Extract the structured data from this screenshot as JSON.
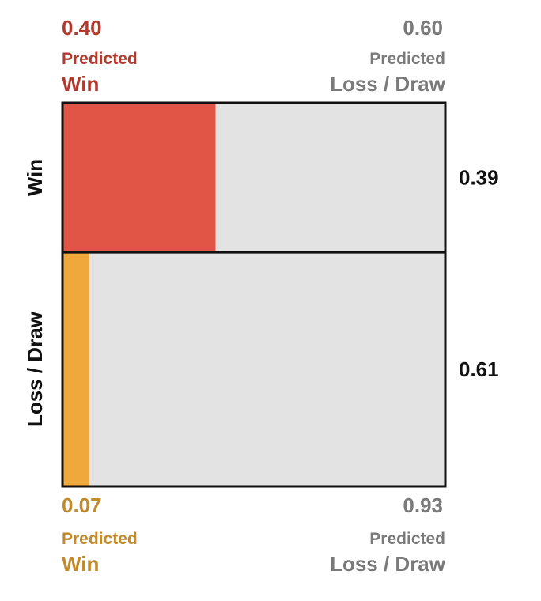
{
  "chart_data": {
    "type": "mosaic",
    "rows": [
      {
        "name": "Win",
        "share": "0.39",
        "share_value": 0.39,
        "predicted": [
          {
            "value": "0.40",
            "fraction": 0.4,
            "label_top": "Predicted",
            "label_bottom": "Win"
          },
          {
            "value": "0.60",
            "fraction": 0.6,
            "label_top": "Predicted",
            "label_bottom": "Loss / Draw"
          }
        ]
      },
      {
        "name": "Loss / Draw",
        "share": "0.61",
        "share_value": 0.61,
        "predicted": [
          {
            "value": "0.07",
            "fraction": 0.07,
            "label_top": "Predicted",
            "label_bottom": "Win"
          },
          {
            "value": "0.93",
            "fraction": 0.93,
            "label_top": "Predicted",
            "label_bottom": "Loss / Draw"
          }
        ]
      }
    ],
    "colors": {
      "win_row_predicted_win": "#e05545",
      "loss_row_predicted_win": "#f0a83d",
      "predicted_other": "#e3e3e3",
      "border": "#111111",
      "top_label": "#b03a2e",
      "bottom_label": "#c18a2d",
      "muted_label": "#7a7a7a",
      "axis_text": "#111111"
    }
  }
}
